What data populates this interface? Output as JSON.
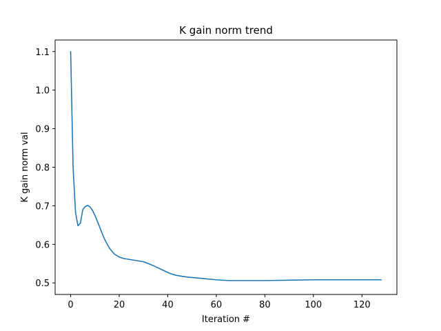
{
  "chart_data": {
    "type": "line",
    "title": "K gain norm trend",
    "xlabel": "Iteration #",
    "ylabel": "K gain norm val",
    "xlim": [
      -6.4,
      134.4
    ],
    "ylim": [
      0.47,
      1.13
    ],
    "xticks": [
      0,
      20,
      40,
      60,
      80,
      100,
      120
    ],
    "yticks": [
      0.5,
      0.6,
      0.7,
      0.8,
      0.9,
      1.0,
      1.1
    ],
    "ytick_labels": [
      "0.5",
      "0.6",
      "0.7",
      "0.8",
      "0.9",
      "1.0",
      "1.1"
    ],
    "grid": false,
    "series": [
      {
        "color": "#1f77b4",
        "x": [
          0,
          1,
          2,
          3,
          4,
          5,
          6,
          7,
          8,
          9,
          10,
          11,
          12,
          13,
          14,
          15,
          16,
          17,
          18,
          19,
          20,
          22,
          24,
          26,
          28,
          30,
          32,
          34,
          36,
          38,
          40,
          42,
          44,
          46,
          48,
          50,
          55,
          60,
          65,
          70,
          75,
          80,
          90,
          100,
          110,
          120,
          128
        ],
        "y": [
          1.1,
          0.8,
          0.683,
          0.648,
          0.655,
          0.69,
          0.698,
          0.701,
          0.697,
          0.688,
          0.675,
          0.66,
          0.644,
          0.628,
          0.613,
          0.601,
          0.59,
          0.582,
          0.575,
          0.571,
          0.567,
          0.563,
          0.561,
          0.559,
          0.557,
          0.555,
          0.55,
          0.545,
          0.539,
          0.533,
          0.527,
          0.522,
          0.519,
          0.517,
          0.515,
          0.514,
          0.511,
          0.508,
          0.506,
          0.506,
          0.506,
          0.506,
          0.507,
          0.508,
          0.508,
          0.508,
          0.508
        ]
      }
    ]
  }
}
